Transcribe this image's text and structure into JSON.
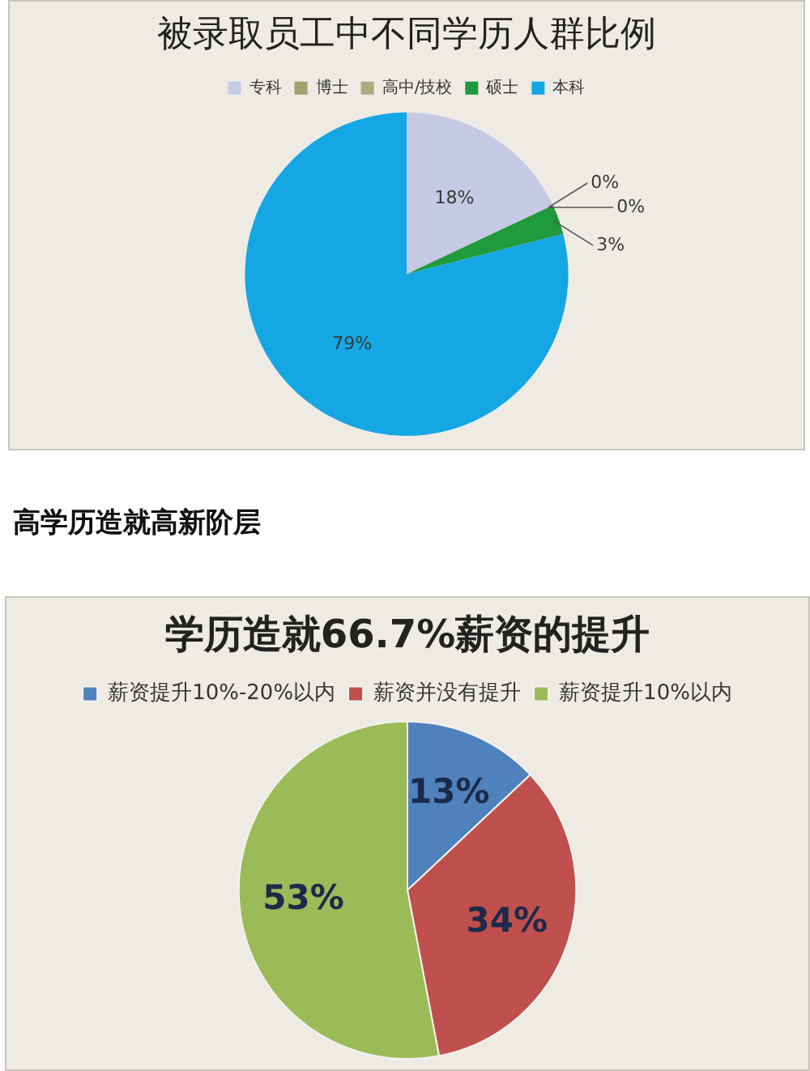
{
  "chart_data": [
    {
      "type": "pie",
      "title": "被录取员工中不同学历人群比例",
      "categories": [
        "专科",
        "博士",
        "高中/技校",
        "硕士",
        "本科"
      ],
      "values": [
        18,
        0,
        0,
        3,
        79
      ],
      "colors": [
        "#c6cae4",
        "#9da36b",
        "#a7ad7e",
        "#1f9a3c",
        "#14a7e3"
      ],
      "value_labels": [
        "18%",
        "0%",
        "0%",
        "3%",
        "79%"
      ],
      "legend": "top"
    },
    {
      "type": "other",
      "title": "高学历造就高新阶层"
    },
    {
      "type": "pie",
      "title": "学历造就66.7%薪资的提升",
      "categories": [
        "薪资提升10%-20%以内",
        "薪资并没有提升",
        "薪资提升10%以内"
      ],
      "values": [
        13,
        34,
        53
      ],
      "colors": [
        "#4f81bd",
        "#c0504d",
        "#9bbb59"
      ],
      "value_labels": [
        "13%",
        "34%",
        "53%"
      ],
      "legend": "top"
    }
  ]
}
